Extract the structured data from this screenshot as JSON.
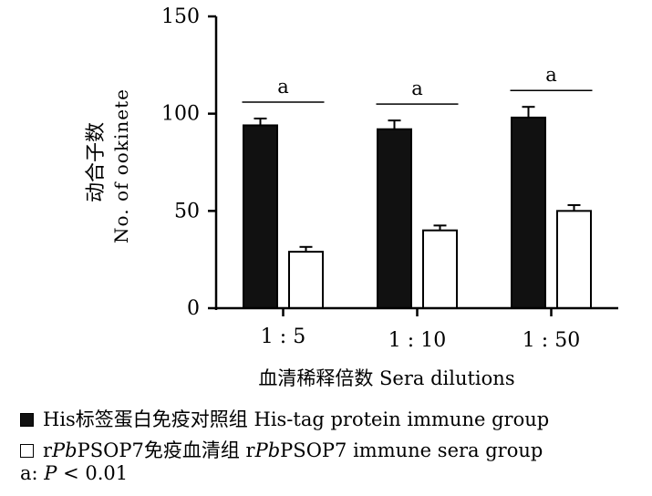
{
  "chart_data": {
    "type": "bar",
    "ylabel_cn": "动合子数",
    "ylabel_en": "No. of ookinete",
    "xlabel": "血清稀释倍数 Sera dilutions",
    "categories": [
      "1 : 5",
      "1 : 10",
      "1 : 50"
    ],
    "ylim": [
      0,
      150
    ],
    "yticks": [
      0,
      50,
      100,
      150
    ],
    "series": [
      {
        "name": "His标签蛋白免疫对照组 His-tag protein immune group",
        "color": "#111111",
        "values": [
          94,
          92,
          98
        ],
        "errors": [
          3.5,
          4.5,
          5.5
        ]
      },
      {
        "name": "rPbPSOP7免疫血清组 rPbPSOP7 immune sera group",
        "color": "#ffffff",
        "values": [
          29,
          40,
          50
        ],
        "errors": [
          2.5,
          2.5,
          3
        ]
      }
    ],
    "significance": [
      "a",
      "a",
      "a"
    ]
  },
  "legend": {
    "his_cn": "His标签蛋白免疫对照组",
    "his_en": "His-tag protein immune group",
    "r_prefix": "r",
    "pb": "Pb",
    "psop": "PSOP7",
    "sera_cn": "免疫血清组",
    "sera_en": "immune sera group"
  },
  "note": {
    "prefix": "a: ",
    "p": "P",
    "rest": " < 0.01"
  }
}
